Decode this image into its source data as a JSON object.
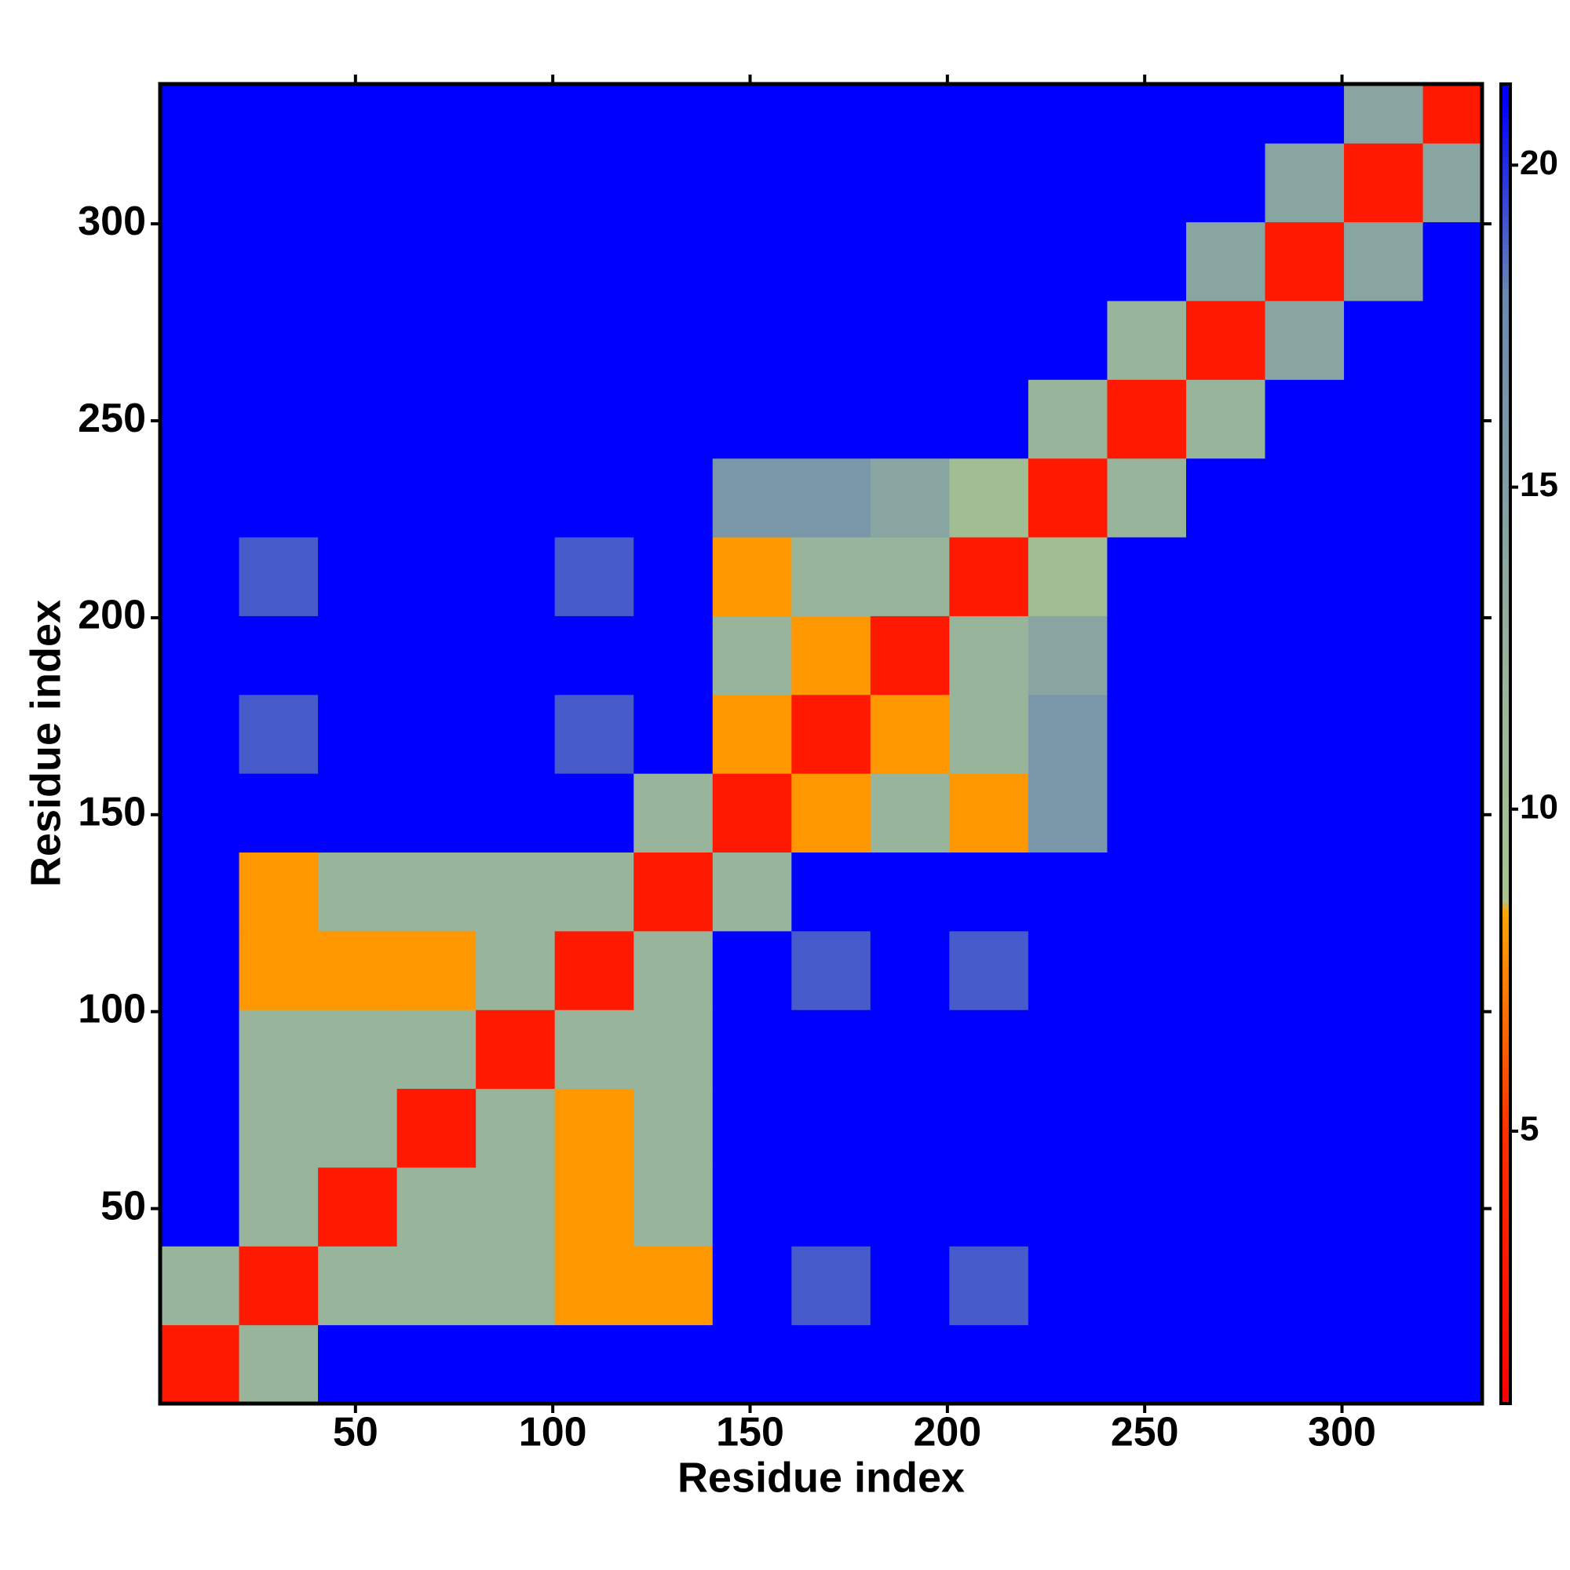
{
  "chart_data": {
    "type": "heatmap",
    "x_label": "Residue index",
    "y_label": "Residue index",
    "x_bins": [
      0.5,
      20.5,
      40.5,
      60.5,
      80.5,
      100.5,
      120.5,
      140.5,
      160.5,
      180.5,
      200.5,
      220.5,
      240.5,
      260.5,
      280.5,
      300.5,
      320.5,
      335.5
    ],
    "y_bins": [
      0.5,
      20.5,
      40.5,
      60.5,
      80.5,
      100.5,
      120.5,
      140.5,
      160.5,
      180.5,
      200.5,
      220.5,
      240.5,
      260.5,
      280.5,
      300.5,
      320.5,
      335.5
    ],
    "values": [
      [
        3,
        12,
        21,
        21,
        21,
        21,
        21,
        21,
        21,
        21,
        21,
        21,
        21,
        21,
        21,
        21,
        21
      ],
      [
        12,
        3,
        12,
        12,
        12,
        8,
        8,
        21,
        19,
        21,
        19,
        21,
        21,
        21,
        21,
        21,
        21
      ],
      [
        21,
        12,
        3,
        12,
        12,
        8,
        12,
        21,
        21,
        21,
        21,
        21,
        21,
        21,
        21,
        21,
        21
      ],
      [
        21,
        12,
        12,
        3,
        12,
        8,
        12,
        21,
        21,
        21,
        21,
        21,
        21,
        21,
        21,
        21,
        21
      ],
      [
        21,
        12,
        12,
        12,
        3,
        12,
        12,
        21,
        21,
        21,
        21,
        21,
        21,
        21,
        21,
        21,
        21
      ],
      [
        21,
        8,
        8,
        8,
        12,
        3,
        12,
        21,
        19,
        21,
        19,
        21,
        21,
        21,
        21,
        21,
        21
      ],
      [
        21,
        8,
        12,
        12,
        12,
        12,
        3,
        12,
        21,
        21,
        21,
        21,
        21,
        21,
        21,
        21,
        21
      ],
      [
        21,
        21,
        21,
        21,
        21,
        21,
        12,
        3,
        8,
        12,
        8,
        16,
        21,
        21,
        21,
        21,
        21
      ],
      [
        21,
        19,
        21,
        21,
        21,
        19,
        21,
        8,
        3,
        8,
        12,
        16,
        21,
        21,
        21,
        21,
        21
      ],
      [
        21,
        21,
        21,
        21,
        21,
        21,
        21,
        12,
        8,
        3,
        12,
        14,
        21,
        21,
        21,
        21,
        21
      ],
      [
        21,
        19,
        21,
        21,
        21,
        19,
        21,
        8,
        12,
        12,
        3,
        10,
        21,
        21,
        21,
        21,
        21
      ],
      [
        21,
        21,
        21,
        21,
        21,
        21,
        21,
        16,
        16,
        14,
        10,
        3,
        12,
        21,
        21,
        21,
        21
      ],
      [
        21,
        21,
        21,
        21,
        21,
        21,
        21,
        21,
        21,
        21,
        21,
        12,
        3,
        12,
        21,
        21,
        21
      ],
      [
        21,
        21,
        21,
        21,
        21,
        21,
        21,
        21,
        21,
        21,
        21,
        21,
        12,
        3,
        14,
        21,
        21
      ],
      [
        21,
        21,
        21,
        21,
        21,
        21,
        21,
        21,
        21,
        21,
        21,
        21,
        21,
        14,
        3,
        14,
        21
      ],
      [
        21,
        21,
        21,
        21,
        21,
        21,
        21,
        21,
        21,
        21,
        21,
        21,
        21,
        21,
        14,
        3,
        14
      ],
      [
        21,
        21,
        21,
        21,
        21,
        21,
        21,
        21,
        21,
        21,
        21,
        21,
        21,
        21,
        21,
        14,
        3
      ]
    ],
    "xlim": [
      0.5,
      335.5
    ],
    "ylim": [
      0.5,
      335.5
    ],
    "xticks": [
      50,
      100,
      150,
      200,
      250,
      300
    ],
    "yticks": [
      50,
      100,
      150,
      200,
      250,
      300
    ],
    "clim": [
      0.77,
      21.26
    ],
    "cticks": [
      5,
      10,
      15,
      20
    ],
    "colorscale": [
      [
        0.77,
        "#ff0000"
      ],
      [
        5,
        "#ff3000"
      ],
      [
        8.4,
        "#ffa500"
      ],
      [
        8.6,
        "#a8c490"
      ],
      [
        12,
        "#98b49a"
      ],
      [
        18,
        "#6a88b0"
      ],
      [
        21,
        "#0000ff"
      ],
      [
        21.26,
        "#0000ff"
      ]
    ]
  }
}
